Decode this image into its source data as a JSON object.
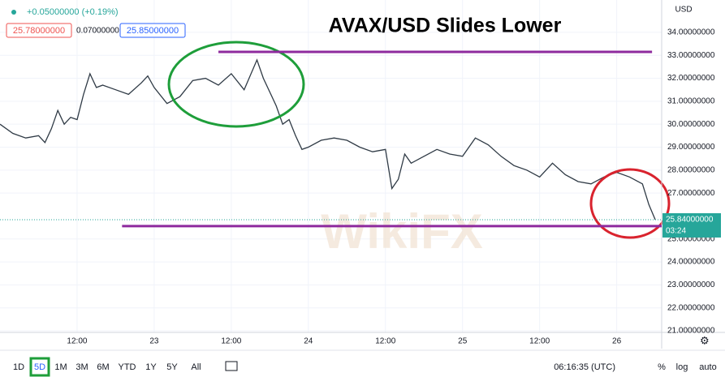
{
  "chart_data": {
    "type": "line",
    "title": "AVAX/USD Slides Lower",
    "currency": "USD",
    "x": [
      0,
      2,
      4,
      6,
      7,
      8,
      9,
      10,
      11,
      12,
      13,
      14,
      15,
      16,
      18,
      20,
      22,
      23,
      24,
      26,
      28,
      30,
      32,
      34,
      36,
      38,
      40,
      41,
      42,
      43,
      44,
      45,
      46,
      47,
      48,
      50,
      52,
      54,
      56,
      58,
      60,
      61,
      62,
      63,
      64,
      66,
      68,
      70,
      72,
      74,
      76,
      78,
      80,
      82,
      84,
      86,
      88,
      90,
      92,
      94,
      96,
      98,
      100,
      101,
      102
    ],
    "series": [
      {
        "name": "AVAX/USD",
        "color": "#2f3a45",
        "values": [
          30.0,
          29.6,
          29.4,
          29.5,
          29.2,
          29.8,
          30.6,
          30.0,
          30.3,
          30.2,
          31.3,
          32.2,
          31.6,
          31.7,
          31.5,
          31.3,
          31.8,
          32.1,
          31.6,
          30.9,
          31.2,
          31.9,
          32.0,
          31.7,
          32.2,
          31.5,
          32.8,
          32.0,
          31.4,
          30.8,
          30.0,
          30.2,
          29.5,
          28.9,
          29.0,
          29.3,
          29.4,
          29.3,
          29.0,
          28.8,
          28.9,
          27.2,
          27.6,
          28.7,
          28.3,
          28.6,
          28.9,
          28.7,
          28.6,
          29.4,
          29.1,
          28.6,
          28.2,
          28.0,
          27.7,
          28.3,
          27.8,
          27.5,
          27.4,
          27.7,
          27.9,
          27.7,
          27.4,
          26.5,
          25.84
        ]
      }
    ],
    "xlim": [
      0,
      103
    ],
    "xticks": [
      {
        "value": 12,
        "label": "12:00"
      },
      {
        "value": 24,
        "label": "23"
      },
      {
        "value": 36,
        "label": "12:00"
      },
      {
        "value": 48,
        "label": "24"
      },
      {
        "value": 60,
        "label": "12:00"
      },
      {
        "value": 72,
        "label": "25"
      },
      {
        "value": 84,
        "label": "12:00"
      },
      {
        "value": 96,
        "label": "26"
      }
    ],
    "ylim": [
      20.93,
      35.41
    ],
    "yticks": [
      {
        "value": 34,
        "label": "34.00000000"
      },
      {
        "value": 33,
        "label": "33.00000000"
      },
      {
        "value": 32,
        "label": "32.00000000"
      },
      {
        "value": 31,
        "label": "31.00000000"
      },
      {
        "value": 30,
        "label": "30.00000000"
      },
      {
        "value": 29,
        "label": "29.00000000"
      },
      {
        "value": 28,
        "label": "28.00000000"
      },
      {
        "value": 27,
        "label": "27.00000000"
      },
      {
        "value": 25,
        "label": "25.00000000"
      },
      {
        "value": 24,
        "label": "24.00000000"
      },
      {
        "value": 23,
        "label": "23.00000000"
      },
      {
        "value": 22,
        "label": "22.00000000"
      },
      {
        "value": 21,
        "label": "21.00000000"
      }
    ],
    "grid": true,
    "hlines": [
      {
        "value": 33.15,
        "x": [
          34,
          101.5
        ],
        "color": "#8e2a9e"
      },
      {
        "value": 25.56,
        "x": [
          19,
          103
        ],
        "color": "#8e2a9e"
      }
    ],
    "last_price": {
      "value": 25.84,
      "label": "25.84000000",
      "countdown": "03:24"
    }
  },
  "header": {
    "change": "+0.05000000 (+0.19%)",
    "bid": "25.78000000",
    "spread": "0.07000000",
    "ask": "25.85000000"
  },
  "watermark": "WikiFX",
  "toolbar": {
    "ranges": [
      "1D",
      "5D",
      "1M",
      "3M",
      "6M",
      "YTD",
      "1Y",
      "5Y",
      "All"
    ],
    "active": "5D",
    "clock": "06:16:35 (UTC)",
    "percent": "%",
    "log": "log",
    "auto": "auto"
  }
}
